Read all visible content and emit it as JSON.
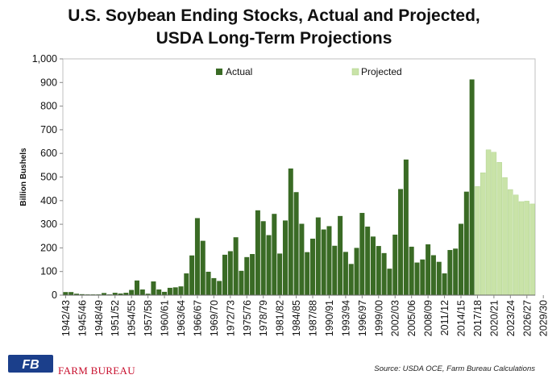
{
  "chart_data": {
    "type": "bar",
    "title_line1": "U.S. Soybean Ending Stocks, Actual and Projected,",
    "title_line2": "USDA Long-Term Projections",
    "ylabel": "Billion Bushels",
    "ylim": [
      0,
      1000
    ],
    "yticks": [
      "0",
      "100",
      "200",
      "300",
      "400",
      "500",
      "600",
      "700",
      "800",
      "900",
      "1,000"
    ],
    "ytick_values": [
      0,
      100,
      200,
      300,
      400,
      500,
      600,
      700,
      800,
      900,
      1000
    ],
    "x_tick_labels": [
      "1942/43",
      "1945/46",
      "1948/49",
      "1951/52",
      "1954/55",
      "1957/58",
      "1960/61",
      "1963/64",
      "1966/67",
      "1969/70",
      "1972/73",
      "1975/76",
      "1978/79",
      "1981/82",
      "1984/85",
      "1987/88",
      "1990/91",
      "1993/94",
      "1996/97",
      "1999/00",
      "2002/03",
      "2005/06",
      "2008/09",
      "2011/12",
      "2014/15",
      "2017/18",
      "2020/21",
      "2023/24",
      "2026/27",
      "2029/30"
    ],
    "start_year": 1942,
    "series": [
      {
        "name": "Actual",
        "color": "#3a6b25",
        "values": [
          13,
          13,
          6,
          4,
          3,
          3,
          3,
          9,
          3,
          10,
          7,
          10,
          22,
          62,
          24,
          6,
          58,
          24,
          14,
          31,
          33,
          37,
          92,
          168,
          326,
          230,
          99,
          72,
          60,
          171,
          186,
          245,
          103,
          161,
          174,
          359,
          313,
          254,
          344,
          176,
          316,
          536,
          436,
          302,
          182,
          239,
          329,
          278,
          292,
          209,
          335,
          183,
          132,
          200,
          348,
          290,
          248,
          208,
          178,
          112,
          256,
          449,
          574,
          205,
          138,
          151,
          215,
          169,
          141,
          92,
          191,
          197,
          302,
          438,
          913
        ]
      },
      {
        "name": "Projected",
        "color": "#c9e3a8",
        "values": [
          460,
          518,
          615,
          605,
          562,
          498,
          447,
          424,
          396,
          398,
          386
        ]
      }
    ],
    "legend": [
      "Actual",
      "Projected"
    ],
    "source": "Source: USDA OCE, Farm Bureau Calculations",
    "brand": "FARM BUREAU",
    "logo_text": "FB"
  }
}
